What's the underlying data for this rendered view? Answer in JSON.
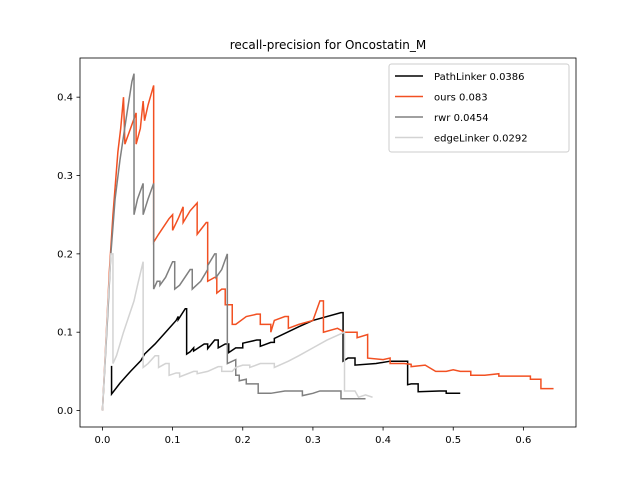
{
  "chart_data": {
    "type": "line",
    "title": "recall-precision for Oncostatin_M",
    "xlabel": "",
    "ylabel": "",
    "xlim": [
      -0.032,
      0.675
    ],
    "ylim": [
      -0.021,
      0.45
    ],
    "xticks": [
      0.0,
      0.1,
      0.2,
      0.3,
      0.4,
      0.5,
      0.6
    ],
    "yticks": [
      0.0,
      0.1,
      0.2,
      0.3,
      0.4
    ],
    "xtick_labels": [
      "0.0",
      "0.1",
      "0.2",
      "0.3",
      "0.4",
      "0.5",
      "0.6"
    ],
    "ytick_labels": [
      "0.0",
      "0.1",
      "0.2",
      "0.3",
      "0.4"
    ],
    "grid": false,
    "legend_position": "top-right",
    "series": [
      {
        "name": "PathLinker 0.0386",
        "color": "#000000",
        "points": [
          [
            0.013,
            0.057
          ],
          [
            0.013,
            0.021
          ],
          [
            0.025,
            0.035
          ],
          [
            0.04,
            0.05
          ],
          [
            0.055,
            0.064
          ],
          [
            0.06,
            0.072
          ],
          [
            0.075,
            0.085
          ],
          [
            0.09,
            0.1
          ],
          [
            0.105,
            0.115
          ],
          [
            0.108,
            0.12
          ],
          [
            0.108,
            0.116
          ],
          [
            0.118,
            0.13
          ],
          [
            0.12,
            0.13
          ],
          [
            0.12,
            0.072
          ],
          [
            0.125,
            0.075
          ],
          [
            0.13,
            0.08
          ],
          [
            0.13,
            0.076
          ],
          [
            0.145,
            0.085
          ],
          [
            0.15,
            0.085
          ],
          [
            0.15,
            0.079
          ],
          [
            0.16,
            0.09
          ],
          [
            0.165,
            0.09
          ],
          [
            0.165,
            0.08
          ],
          [
            0.175,
            0.085
          ],
          [
            0.18,
            0.085
          ],
          [
            0.18,
            0.074
          ],
          [
            0.19,
            0.08
          ],
          [
            0.2,
            0.08
          ],
          [
            0.2,
            0.086
          ],
          [
            0.22,
            0.09
          ],
          [
            0.225,
            0.09
          ],
          [
            0.225,
            0.082
          ],
          [
            0.24,
            0.087
          ],
          [
            0.245,
            0.087
          ],
          [
            0.245,
            0.092
          ],
          [
            0.28,
            0.107
          ],
          [
            0.3,
            0.115
          ],
          [
            0.34,
            0.125
          ],
          [
            0.343,
            0.125
          ],
          [
            0.343,
            0.063
          ],
          [
            0.35,
            0.067
          ],
          [
            0.36,
            0.067
          ],
          [
            0.36,
            0.058
          ],
          [
            0.39,
            0.06
          ],
          [
            0.41,
            0.063
          ],
          [
            0.435,
            0.063
          ],
          [
            0.435,
            0.033
          ],
          [
            0.44,
            0.034
          ],
          [
            0.45,
            0.034
          ],
          [
            0.45,
            0.024
          ],
          [
            0.48,
            0.025
          ],
          [
            0.49,
            0.025
          ],
          [
            0.49,
            0.022
          ],
          [
            0.51,
            0.022
          ]
        ]
      },
      {
        "name": "ours 0.083",
        "color": "#f25022",
        "points": [
          [
            0.0,
            0.0
          ],
          [
            0.01,
            0.18
          ],
          [
            0.015,
            0.25
          ],
          [
            0.022,
            0.33
          ],
          [
            0.026,
            0.36
          ],
          [
            0.03,
            0.4
          ],
          [
            0.032,
            0.34
          ],
          [
            0.04,
            0.36
          ],
          [
            0.048,
            0.38
          ],
          [
            0.048,
            0.34
          ],
          [
            0.054,
            0.36
          ],
          [
            0.058,
            0.395
          ],
          [
            0.06,
            0.37
          ],
          [
            0.065,
            0.39
          ],
          [
            0.073,
            0.415
          ],
          [
            0.073,
            0.215
          ],
          [
            0.08,
            0.225
          ],
          [
            0.095,
            0.245
          ],
          [
            0.1,
            0.25
          ],
          [
            0.1,
            0.23
          ],
          [
            0.108,
            0.245
          ],
          [
            0.115,
            0.26
          ],
          [
            0.115,
            0.24
          ],
          [
            0.125,
            0.255
          ],
          [
            0.135,
            0.265
          ],
          [
            0.135,
            0.225
          ],
          [
            0.148,
            0.24
          ],
          [
            0.15,
            0.24
          ],
          [
            0.15,
            0.165
          ],
          [
            0.16,
            0.17
          ],
          [
            0.163,
            0.17
          ],
          [
            0.163,
            0.15
          ],
          [
            0.17,
            0.155
          ],
          [
            0.175,
            0.155
          ],
          [
            0.175,
            0.135
          ],
          [
            0.185,
            0.135
          ],
          [
            0.185,
            0.11
          ],
          [
            0.19,
            0.11
          ],
          [
            0.205,
            0.12
          ],
          [
            0.22,
            0.123
          ],
          [
            0.225,
            0.123
          ],
          [
            0.225,
            0.11
          ],
          [
            0.24,
            0.11
          ],
          [
            0.24,
            0.1
          ],
          [
            0.245,
            0.115
          ],
          [
            0.26,
            0.12
          ],
          [
            0.265,
            0.12
          ],
          [
            0.265,
            0.105
          ],
          [
            0.28,
            0.11
          ],
          [
            0.3,
            0.115
          ],
          [
            0.31,
            0.14
          ],
          [
            0.315,
            0.14
          ],
          [
            0.315,
            0.1
          ],
          [
            0.335,
            0.105
          ],
          [
            0.345,
            0.1
          ],
          [
            0.36,
            0.1
          ],
          [
            0.363,
            0.1
          ],
          [
            0.363,
            0.093
          ],
          [
            0.378,
            0.097
          ],
          [
            0.378,
            0.067
          ],
          [
            0.4,
            0.065
          ],
          [
            0.41,
            0.067
          ],
          [
            0.41,
            0.06
          ],
          [
            0.43,
            0.06
          ],
          [
            0.44,
            0.059
          ],
          [
            0.44,
            0.056
          ],
          [
            0.46,
            0.058
          ],
          [
            0.475,
            0.05
          ],
          [
            0.49,
            0.05
          ],
          [
            0.5,
            0.052
          ],
          [
            0.51,
            0.05
          ],
          [
            0.525,
            0.05
          ],
          [
            0.525,
            0.045
          ],
          [
            0.545,
            0.045
          ],
          [
            0.565,
            0.047
          ],
          [
            0.565,
            0.044
          ],
          [
            0.6,
            0.044
          ],
          [
            0.61,
            0.044
          ],
          [
            0.61,
            0.04
          ],
          [
            0.625,
            0.04
          ],
          [
            0.625,
            0.028
          ],
          [
            0.643,
            0.028
          ]
        ]
      },
      {
        "name": "rwr 0.0454",
        "color": "#808080",
        "points": [
          [
            0.0,
            0.0
          ],
          [
            0.008,
            0.13
          ],
          [
            0.012,
            0.2
          ],
          [
            0.018,
            0.27
          ],
          [
            0.025,
            0.32
          ],
          [
            0.03,
            0.35
          ],
          [
            0.035,
            0.38
          ],
          [
            0.042,
            0.42
          ],
          [
            0.045,
            0.43
          ],
          [
            0.045,
            0.25
          ],
          [
            0.05,
            0.27
          ],
          [
            0.058,
            0.29
          ],
          [
            0.058,
            0.25
          ],
          [
            0.065,
            0.27
          ],
          [
            0.073,
            0.29
          ],
          [
            0.073,
            0.155
          ],
          [
            0.078,
            0.165
          ],
          [
            0.082,
            0.165
          ],
          [
            0.082,
            0.16
          ],
          [
            0.09,
            0.17
          ],
          [
            0.1,
            0.19
          ],
          [
            0.103,
            0.19
          ],
          [
            0.103,
            0.155
          ],
          [
            0.11,
            0.16
          ],
          [
            0.125,
            0.18
          ],
          [
            0.128,
            0.18
          ],
          [
            0.128,
            0.155
          ],
          [
            0.14,
            0.165
          ],
          [
            0.15,
            0.18
          ],
          [
            0.15,
            0.185
          ],
          [
            0.16,
            0.2
          ],
          [
            0.162,
            0.2
          ],
          [
            0.162,
            0.17
          ],
          [
            0.17,
            0.18
          ],
          [
            0.178,
            0.2
          ],
          [
            0.178,
            0.06
          ],
          [
            0.19,
            0.065
          ],
          [
            0.19,
            0.045
          ],
          [
            0.195,
            0.045
          ],
          [
            0.195,
            0.038
          ],
          [
            0.205,
            0.04
          ],
          [
            0.205,
            0.034
          ],
          [
            0.215,
            0.034
          ],
          [
            0.222,
            0.034
          ],
          [
            0.222,
            0.022
          ],
          [
            0.24,
            0.022
          ],
          [
            0.26,
            0.025
          ],
          [
            0.28,
            0.025
          ],
          [
            0.285,
            0.025
          ],
          [
            0.285,
            0.019
          ],
          [
            0.3,
            0.022
          ],
          [
            0.31,
            0.025
          ],
          [
            0.315,
            0.025
          ],
          [
            0.33,
            0.025
          ],
          [
            0.34,
            0.025
          ],
          [
            0.34,
            0.015
          ],
          [
            0.35,
            0.015
          ],
          [
            0.375,
            0.015
          ]
        ]
      },
      {
        "name": "edgeLinker 0.0292",
        "color": "#d3d3d3",
        "points": [
          [
            0.0,
            0.0
          ],
          [
            0.008,
            0.14
          ],
          [
            0.012,
            0.2
          ],
          [
            0.015,
            0.2
          ],
          [
            0.015,
            0.06
          ],
          [
            0.02,
            0.07
          ],
          [
            0.03,
            0.1
          ],
          [
            0.045,
            0.14
          ],
          [
            0.05,
            0.16
          ],
          [
            0.058,
            0.19
          ],
          [
            0.058,
            0.055
          ],
          [
            0.065,
            0.06
          ],
          [
            0.075,
            0.07
          ],
          [
            0.08,
            0.07
          ],
          [
            0.08,
            0.055
          ],
          [
            0.09,
            0.06
          ],
          [
            0.095,
            0.06
          ],
          [
            0.095,
            0.045
          ],
          [
            0.105,
            0.048
          ],
          [
            0.11,
            0.048
          ],
          [
            0.11,
            0.043
          ],
          [
            0.13,
            0.05
          ],
          [
            0.135,
            0.05
          ],
          [
            0.135,
            0.047
          ],
          [
            0.15,
            0.05
          ],
          [
            0.165,
            0.056
          ],
          [
            0.17,
            0.056
          ],
          [
            0.17,
            0.05
          ],
          [
            0.185,
            0.05
          ],
          [
            0.19,
            0.055
          ],
          [
            0.2,
            0.058
          ],
          [
            0.21,
            0.058
          ],
          [
            0.21,
            0.055
          ],
          [
            0.225,
            0.06
          ],
          [
            0.245,
            0.06
          ],
          [
            0.245,
            0.055
          ],
          [
            0.265,
            0.063
          ],
          [
            0.28,
            0.07
          ],
          [
            0.3,
            0.08
          ],
          [
            0.32,
            0.09
          ],
          [
            0.345,
            0.1
          ],
          [
            0.345,
            0.025
          ],
          [
            0.36,
            0.025
          ],
          [
            0.365,
            0.017
          ],
          [
            0.375,
            0.02
          ],
          [
            0.385,
            0.017
          ]
        ]
      }
    ]
  }
}
